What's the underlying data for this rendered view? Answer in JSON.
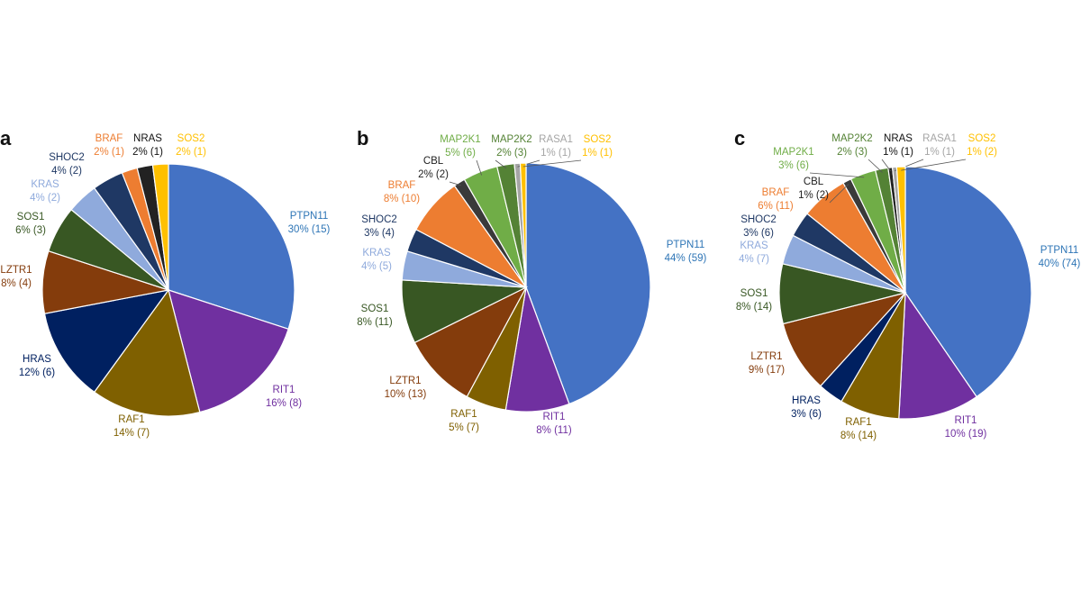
{
  "colors": {
    "PTPN11": "#4472c4",
    "RIT1": "#7030a0",
    "RAF1": "#7f6000",
    "HRAS": "#002060",
    "LZTR1": "#843c0c",
    "SOS1": "#385723",
    "KRAS": "#8faadc",
    "SHOC2": "#1f3864",
    "BRAF": "#ed7d31",
    "CBL": "#3a3a3a",
    "MAP2K1": "#70ad47",
    "MAP2K2": "#548235",
    "NRAS": "#222222",
    "RASA1": "#a5a5a5",
    "SOS2": "#ffc000"
  },
  "label_colors": {
    "PTPN11": "#2e75b6",
    "RIT1": "#7030a0",
    "RAF1": "#7f6000",
    "HRAS": "#002060",
    "LZTR1": "#843c0c",
    "SOS1": "#385723",
    "KRAS": "#8faadc",
    "SHOC2": "#1f3864",
    "BRAF": "#ed7d31",
    "CBL": "#222222",
    "MAP2K1": "#70ad47",
    "MAP2K2": "#548235",
    "NRAS": "#111111",
    "RASA1": "#a5a5a5",
    "SOS2": "#ffc000"
  },
  "chart_data": [
    {
      "type": "pie",
      "panel": "a",
      "slices": [
        {
          "name": "PTPN11",
          "value": 15,
          "label": "30% (15)"
        },
        {
          "name": "RIT1",
          "value": 8,
          "label": "16% (8)"
        },
        {
          "name": "RAF1",
          "value": 7,
          "label": "14% (7)"
        },
        {
          "name": "HRAS",
          "value": 6,
          "label": "12% (6)"
        },
        {
          "name": "LZTR1",
          "value": 4,
          "label": "8% (4)"
        },
        {
          "name": "SOS1",
          "value": 3,
          "label": "6% (3)"
        },
        {
          "name": "KRAS",
          "value": 2,
          "label": "4% (2)"
        },
        {
          "name": "SHOC2",
          "value": 2,
          "label": "4% (2)"
        },
        {
          "name": "BRAF",
          "value": 1,
          "label": "2% (1)"
        },
        {
          "name": "NRAS",
          "value": 1,
          "label": "2% (1)"
        },
        {
          "name": "SOS2",
          "value": 1,
          "label": "2% (1)"
        }
      ]
    },
    {
      "type": "pie",
      "panel": "b",
      "slices": [
        {
          "name": "PTPN11",
          "value": 59,
          "label": "44% (59)"
        },
        {
          "name": "RIT1",
          "value": 11,
          "label": "8% (11)"
        },
        {
          "name": "RAF1",
          "value": 7,
          "label": "5% (7)"
        },
        {
          "name": "LZTR1",
          "value": 13,
          "label": "10% (13)"
        },
        {
          "name": "SOS1",
          "value": 11,
          "label": "8% (11)"
        },
        {
          "name": "KRAS",
          "value": 5,
          "label": "4% (5)"
        },
        {
          "name": "SHOC2",
          "value": 4,
          "label": "3% (4)"
        },
        {
          "name": "BRAF",
          "value": 10,
          "label": "8% (10)"
        },
        {
          "name": "CBL",
          "value": 2,
          "label": "2% (2)"
        },
        {
          "name": "MAP2K1",
          "value": 6,
          "label": "5% (6)"
        },
        {
          "name": "MAP2K2",
          "value": 3,
          "label": "2% (3)"
        },
        {
          "name": "RASA1",
          "value": 1,
          "label": "1% (1)"
        },
        {
          "name": "SOS2",
          "value": 1,
          "label": "1% (1)"
        }
      ]
    },
    {
      "type": "pie",
      "panel": "c",
      "slices": [
        {
          "name": "PTPN11",
          "value": 74,
          "label": "40% (74)"
        },
        {
          "name": "RIT1",
          "value": 19,
          "label": "10% (19)"
        },
        {
          "name": "RAF1",
          "value": 14,
          "label": "8% (14)"
        },
        {
          "name": "HRAS",
          "value": 6,
          "label": "3% (6)"
        },
        {
          "name": "LZTR1",
          "value": 17,
          "label": "9% (17)"
        },
        {
          "name": "SOS1",
          "value": 14,
          "label": "8% (14)"
        },
        {
          "name": "KRAS",
          "value": 7,
          "label": "4% (7)"
        },
        {
          "name": "SHOC2",
          "value": 6,
          "label": "3% (6)"
        },
        {
          "name": "BRAF",
          "value": 11,
          "label": "6% (11)"
        },
        {
          "name": "CBL",
          "value": 2,
          "label": "1% (2)"
        },
        {
          "name": "MAP2K1",
          "value": 6,
          "label": "3% (6)"
        },
        {
          "name": "MAP2K2",
          "value": 3,
          "label": "2% (3)"
        },
        {
          "name": "NRAS",
          "value": 1,
          "label": "1% (1)"
        },
        {
          "name": "RASA1",
          "value": 1,
          "label": "1% (1)"
        },
        {
          "name": "SOS2",
          "value": 2,
          "label": "1% (2)"
        }
      ]
    }
  ]
}
